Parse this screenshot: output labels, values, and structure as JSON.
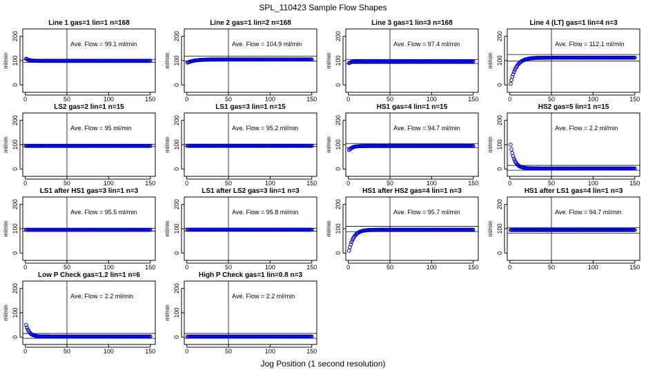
{
  "figure": {
    "title": "SPL_110423  Sample Flow Shapes",
    "xlabel": "Jog Position (1 second resolution)"
  },
  "chart_data": [
    {
      "type": "scatter",
      "title": "Line 1 gas=1 lin=1 n=168",
      "ylabel": "ml/min",
      "annotation": "Ave. Flow =  99.1  ml/min",
      "xlim": [
        0,
        150
      ],
      "ylim": [
        0,
        200
      ],
      "xticks": [
        0,
        50,
        100,
        150
      ],
      "yticks": [
        0,
        100,
        200
      ],
      "hlines": [
        93,
        105
      ],
      "vline": 50,
      "color": "#0000CC",
      "series": [
        {
          "shape": "flat",
          "start": 108,
          "end": 99.1,
          "rate": 0.3,
          "x_from": 1,
          "x_to": 150
        }
      ]
    },
    {
      "type": "scatter",
      "title": "Line 2 gas=1 lin=2 n=168",
      "ylabel": "ml/min",
      "annotation": "Ave. Flow =  104.9  ml/min",
      "xlim": [
        0,
        150
      ],
      "ylim": [
        0,
        200
      ],
      "xticks": [
        0,
        50,
        100,
        150
      ],
      "yticks": [
        0,
        100,
        200
      ],
      "hlines": [
        98,
        118
      ],
      "vline": 50,
      "color": "#0000CC",
      "series": [
        {
          "shape": "rise",
          "start": 92,
          "end": 104.9,
          "rate": 0.12,
          "x_from": 1,
          "x_to": 150
        }
      ]
    },
    {
      "type": "scatter",
      "title": "Line 3 gas=1 lin=3 n=168",
      "ylabel": "ml/min",
      "annotation": "Ave. Flow =  97.4  ml/min",
      "xlim": [
        0,
        150
      ],
      "ylim": [
        0,
        200
      ],
      "xticks": [
        0,
        50,
        100,
        150
      ],
      "yticks": [
        0,
        100,
        200
      ],
      "hlines": [
        88,
        105
      ],
      "vline": 50,
      "color": "#0000CC",
      "series": [
        {
          "shape": "rise",
          "start": 90,
          "end": 97.4,
          "rate": 0.3,
          "x_from": 1,
          "x_to": 150
        }
      ]
    },
    {
      "type": "scatter",
      "title": "Line 4 (LT) gas=1 lin=4 n=3",
      "ylabel": "ml/min",
      "annotation": "Ave. Flow =  112.1  ml/min",
      "xlim": [
        0,
        150
      ],
      "ylim": [
        0,
        200
      ],
      "xticks": [
        0,
        50,
        100,
        150
      ],
      "yticks": [
        0,
        100,
        200
      ],
      "hlines": [
        98,
        125
      ],
      "vline": 50,
      "color": "#0000CC",
      "series": [
        {
          "shape": "rise",
          "start": 5,
          "end": 112.1,
          "rate": 0.15,
          "x_from": 1,
          "x_to": 150
        }
      ]
    },
    {
      "type": "scatter",
      "title": "LS2 gas=2 lin=1 n=15",
      "ylabel": "ml/min",
      "annotation": "Ave. Flow =  95  ml/min",
      "xlim": [
        0,
        150
      ],
      "ylim": [
        0,
        200
      ],
      "xticks": [
        0,
        50,
        100,
        150
      ],
      "yticks": [
        0,
        100,
        200
      ],
      "hlines": [
        92,
        102
      ],
      "vline": 50,
      "color": "#0000CC",
      "series": [
        {
          "shape": "flat",
          "start": 95,
          "end": 95,
          "rate": 0.3,
          "x_from": 1,
          "x_to": 150
        }
      ]
    },
    {
      "type": "scatter",
      "title": "LS1 gas=3 lin=1 n=15",
      "ylabel": "ml/min",
      "annotation": "Ave. Flow =  95.2  ml/min",
      "xlim": [
        0,
        150
      ],
      "ylim": [
        0,
        200
      ],
      "xticks": [
        0,
        50,
        100,
        150
      ],
      "yticks": [
        0,
        100,
        200
      ],
      "hlines": [
        92,
        102
      ],
      "vline": 50,
      "color": "#0000CC",
      "series": [
        {
          "shape": "flat",
          "start": 95.2,
          "end": 95.2,
          "rate": 0.3,
          "x_from": 1,
          "x_to": 150
        }
      ]
    },
    {
      "type": "scatter",
      "title": "HS1 gas=4 lin=1 n=15",
      "ylabel": "ml/min",
      "annotation": "Ave. Flow =  94.7  ml/min",
      "xlim": [
        0,
        150
      ],
      "ylim": [
        0,
        200
      ],
      "xticks": [
        0,
        50,
        100,
        150
      ],
      "yticks": [
        0,
        100,
        200
      ],
      "hlines": [
        88,
        105
      ],
      "vline": 50,
      "color": "#0000CC",
      "series": [
        {
          "shape": "rise",
          "start": 78,
          "end": 94.7,
          "rate": 0.25,
          "x_from": 1,
          "x_to": 150
        }
      ]
    },
    {
      "type": "scatter",
      "title": "HS2 gas=5 lin=1 n=15",
      "ylabel": "ml/min",
      "annotation": "Ave. Flow =  2.2  ml/min",
      "xlim": [
        0,
        150
      ],
      "ylim": [
        0,
        200
      ],
      "xticks": [
        0,
        50,
        100,
        150
      ],
      "yticks": [
        0,
        100,
        200
      ],
      "hlines": [
        -5,
        15
      ],
      "vline": 50,
      "color": "#0000CC",
      "series": [
        {
          "shape": "decay",
          "start": 100,
          "end": 2.2,
          "rate": 0.22,
          "x_from": 1,
          "x_to": 150
        }
      ]
    },
    {
      "type": "scatter",
      "title": "LS1 after HS1 gas=3 lin=1 n=3",
      "ylabel": "ml/min",
      "annotation": "Ave. Flow =  95.5  ml/min",
      "xlim": [
        0,
        150
      ],
      "ylim": [
        0,
        200
      ],
      "xticks": [
        0,
        50,
        100,
        150
      ],
      "yticks": [
        0,
        100,
        200
      ],
      "hlines": [
        90,
        102
      ],
      "vline": 50,
      "color": "#0000CC",
      "series": [
        {
          "shape": "flat",
          "start": 95.5,
          "end": 95.5,
          "rate": 0.3,
          "x_from": 1,
          "x_to": 150
        }
      ]
    },
    {
      "type": "scatter",
      "title": "LS1 after LS2 gas=3 lin=1 n=3",
      "ylabel": "ml/min",
      "annotation": "Ave. Flow =  95.8  ml/min",
      "xlim": [
        0,
        150
      ],
      "ylim": [
        0,
        200
      ],
      "xticks": [
        0,
        50,
        100,
        150
      ],
      "yticks": [
        0,
        100,
        200
      ],
      "hlines": [
        90,
        102
      ],
      "vline": 50,
      "color": "#0000CC",
      "series": [
        {
          "shape": "flat",
          "start": 95.8,
          "end": 95.8,
          "rate": 0.3,
          "x_from": 1,
          "x_to": 150
        }
      ]
    },
    {
      "type": "scatter",
      "title": "HS1 after HS2 gas=4 lin=1 n=3",
      "ylabel": "ml/min",
      "annotation": "Ave. Flow =  95.7  ml/min",
      "xlim": [
        0,
        150
      ],
      "ylim": [
        0,
        200
      ],
      "xticks": [
        0,
        50,
        100,
        150
      ],
      "yticks": [
        0,
        100,
        200
      ],
      "hlines": [
        88,
        110
      ],
      "vline": 50,
      "color": "#0000CC",
      "series": [
        {
          "shape": "rise",
          "start": 10,
          "end": 95.7,
          "rate": 0.18,
          "x_from": 1,
          "x_to": 150
        }
      ]
    },
    {
      "type": "scatter",
      "title": "HS1 after LS1 gas=4 lin=1 n=3",
      "ylabel": "ml/min",
      "annotation": "Ave. Flow =  94.7  ml/min",
      "xlim": [
        0,
        150
      ],
      "ylim": [
        0,
        200
      ],
      "xticks": [
        0,
        50,
        100,
        150
      ],
      "yticks": [
        0,
        100,
        200
      ],
      "hlines": [
        82,
        105
      ],
      "vline": 50,
      "color": "#0000CC",
      "series": [
        {
          "shape": "flat",
          "start": 94.7,
          "end": 94.7,
          "rate": 0.3,
          "x_from": 1,
          "x_to": 150
        }
      ]
    },
    {
      "type": "scatter",
      "title": "Low P Check gas=1.2 lin=1 n=6",
      "ylabel": "ml/min",
      "annotation": "Ave. Flow =  2.2  ml/min",
      "xlim": [
        0,
        150
      ],
      "ylim": [
        0,
        200
      ],
      "xticks": [
        0,
        50,
        100,
        150
      ],
      "yticks": [
        0,
        100,
        200
      ],
      "hlines": [
        -5,
        15
      ],
      "vline": 50,
      "color": "#0000CC",
      "series": [
        {
          "shape": "decay",
          "start": 50,
          "end": 2.2,
          "rate": 0.25,
          "x_from": 1,
          "x_to": 150
        }
      ]
    },
    {
      "type": "scatter",
      "title": "High P Check gas=1 lin=0.8 n=3",
      "ylabel": "ml/min",
      "annotation": "Ave. Flow =  2.2  ml/min",
      "xlim": [
        0,
        150
      ],
      "ylim": [
        0,
        200
      ],
      "xticks": [
        0,
        50,
        100,
        150
      ],
      "yticks": [
        0,
        100,
        200
      ],
      "hlines": [
        -5,
        15
      ],
      "vline": 50,
      "color": "#0000CC",
      "series": [
        {
          "shape": "flat",
          "start": 2.2,
          "end": 2.2,
          "rate": 0.3,
          "x_from": 1,
          "x_to": 150
        }
      ]
    }
  ]
}
